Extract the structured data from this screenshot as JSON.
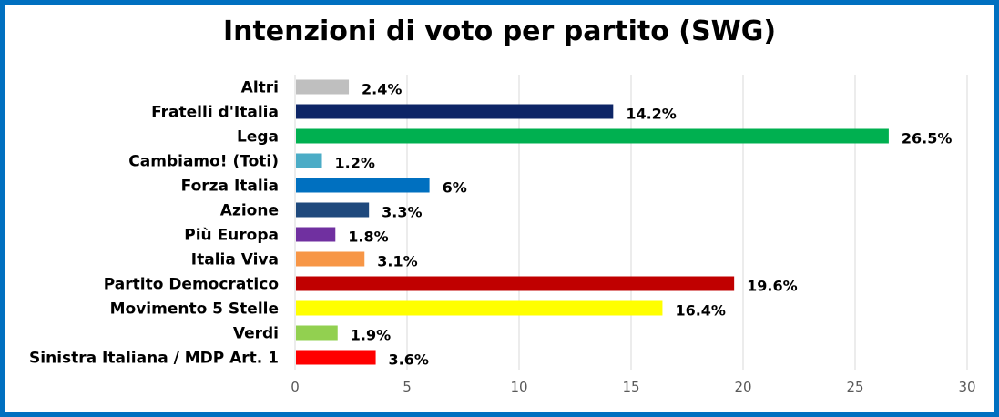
{
  "chart_data": {
    "type": "bar",
    "orientation": "horizontal",
    "title": "Intenzioni di voto per partito (SWG)",
    "xlabel": "",
    "ylabel": "",
    "xlim": [
      0,
      30
    ],
    "x_ticks": [
      "0",
      "5",
      "10",
      "15",
      "20",
      "25",
      "30"
    ],
    "grid": true,
    "categories": [
      "Altri",
      "Fratelli d'Italia",
      "Lega",
      "Cambiamo! (Toti)",
      "Forza Italia",
      "Azione",
      "Più Europa",
      "Italia Viva",
      "Partito Democratico",
      "Movimento 5 Stelle",
      "Verdi",
      "Sinistra Italiana / MDP Art. 1"
    ],
    "values": [
      2.4,
      14.2,
      26.5,
      1.2,
      6,
      3.3,
      1.8,
      3.1,
      19.6,
      16.4,
      1.9,
      3.6
    ],
    "value_labels": [
      "2.4%",
      "14.2%",
      "26.5%",
      "1.2%",
      "6%",
      "3.3%",
      "1.8%",
      "3.1%",
      "19.6%",
      "16.4%",
      "1.9%",
      "3.6%"
    ],
    "colors": [
      "#bfbfbf",
      "#0d2566",
      "#00b050",
      "#4bacc6",
      "#0070c0",
      "#1f497d",
      "#7030a0",
      "#f79646",
      "#c00000",
      "#ffff00",
      "#92d050",
      "#ff0000"
    ],
    "frame_color": "#0070c0"
  }
}
